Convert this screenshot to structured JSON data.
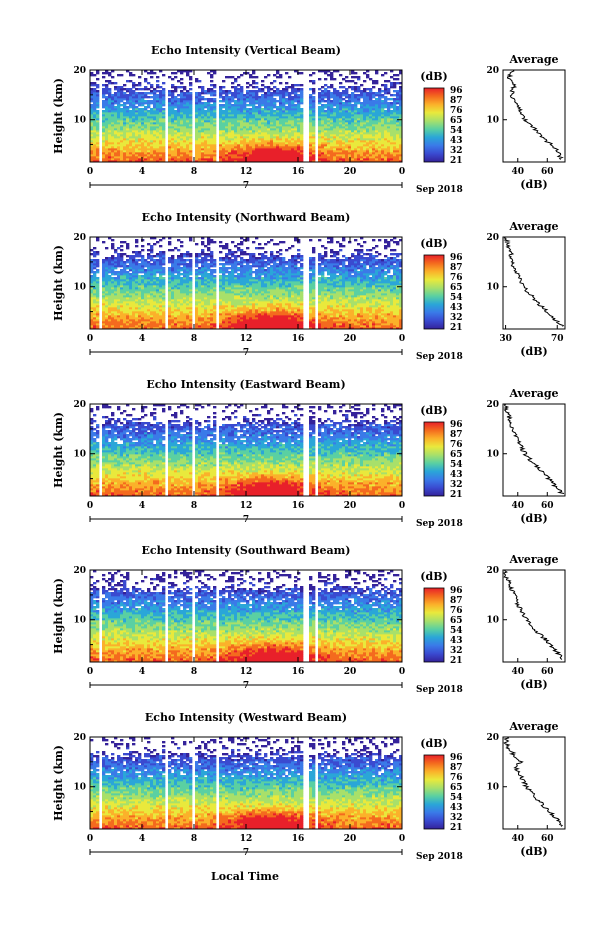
{
  "x_axis_title": "Local Time",
  "chart_data": {
    "type": "heatmap",
    "date_label": "7",
    "month_year": "Sep 2018",
    "time_ticks": [
      "0",
      "4",
      "8",
      "12",
      "16",
      "20",
      "0"
    ],
    "height_ticks": [
      "20",
      "10"
    ],
    "ylabel": "Height (km)",
    "ylim": [
      1.5,
      20
    ],
    "xlim": [
      0,
      24
    ],
    "colorbar": {
      "title": "(dB)",
      "labels": [
        "96",
        "87",
        "76",
        "65",
        "54",
        "43",
        "32",
        "21"
      ]
    },
    "data_gaps_hours": [
      [
        0.8,
        1.0
      ],
      [
        5.7,
        6.0
      ],
      [
        7.8,
        8.1
      ],
      [
        9.6,
        9.9
      ],
      [
        16.4,
        16.8
      ],
      [
        17.4,
        17.6
      ]
    ],
    "panels": [
      {
        "title": "Echo Intensity (Vertical Beam)",
        "colorbar_labels": [
          "96",
          "87",
          "76",
          "65",
          "54",
          "43",
          "32",
          "21"
        ],
        "profile": {
          "title": "Average",
          "xlabel": "(dB)",
          "xticks": [
            "40",
            "60"
          ],
          "xlim": [
            30,
            72
          ],
          "height_km": [
            2,
            3,
            4,
            5,
            6,
            7,
            8,
            9,
            10,
            11,
            12,
            13,
            14,
            15,
            16,
            17,
            18,
            19,
            20
          ],
          "mean_db": [
            70,
            68,
            66,
            63,
            58,
            56,
            52,
            49,
            45,
            43,
            42,
            40,
            38,
            36,
            36,
            38,
            34,
            35,
            37
          ]
        }
      },
      {
        "title": "Echo Intensity (Northward Beam)",
        "colorbar_labels": [
          "96",
          "87",
          "76",
          "65",
          "54",
          "43",
          "32",
          "21"
        ],
        "profile": {
          "title": "Average",
          "xlabel": "(dB)",
          "xticks": [
            "30",
            "70"
          ],
          "xlim": [
            28,
            76
          ],
          "height_km": [
            2,
            3,
            4,
            5,
            6,
            7,
            8,
            9,
            10,
            11,
            12,
            13,
            14,
            15,
            16,
            17,
            18,
            19,
            20
          ],
          "mean_db": [
            74,
            70,
            66,
            62,
            58,
            54,
            51,
            47,
            44,
            42,
            41,
            38,
            36,
            35,
            34,
            35,
            32,
            31,
            30
          ]
        }
      },
      {
        "title": "Echo Intensity (Eastward Beam)",
        "colorbar_labels": [
          "96",
          "87",
          "76",
          "65",
          "54",
          "43",
          "32",
          "21"
        ],
        "profile": {
          "title": "Average",
          "xlabel": "(dB)",
          "xticks": [
            "40",
            "60"
          ],
          "xlim": [
            30,
            72
          ],
          "height_km": [
            2,
            3,
            4,
            5,
            6,
            7,
            8,
            9,
            10,
            11,
            12,
            13,
            14,
            15,
            16,
            17,
            18,
            19,
            20
          ],
          "mean_db": [
            70,
            67,
            64,
            61,
            58,
            55,
            51,
            48,
            45,
            43,
            41,
            40,
            38,
            36,
            35,
            35,
            33,
            32,
            32
          ]
        }
      },
      {
        "title": "Echo Intensity (Southward Beam)",
        "colorbar_labels": [
          "96",
          "87",
          "76",
          "65",
          "54",
          "43",
          "32",
          "21"
        ],
        "profile": {
          "title": "Average",
          "xlabel": "(dB)",
          "xticks": [
            "40",
            "60"
          ],
          "xlim": [
            30,
            72
          ],
          "height_km": [
            2,
            3,
            4,
            5,
            6,
            7,
            8,
            9,
            10,
            11,
            12,
            13,
            14,
            15,
            16,
            17,
            18,
            19,
            20
          ],
          "mean_db": [
            70,
            68,
            65,
            62,
            59,
            55,
            52,
            49,
            46,
            44,
            42,
            40,
            39,
            38,
            36,
            35,
            33,
            32,
            31
          ]
        }
      },
      {
        "title": "Echo Intensity (Westward Beam)",
        "colorbar_labels": [
          "96",
          "87",
          "76",
          "65",
          "54",
          "43",
          "32",
          "21"
        ],
        "profile": {
          "title": "Average",
          "xlabel": "(dB)",
          "xticks": [
            "40",
            "60"
          ],
          "xlim": [
            30,
            72
          ],
          "height_km": [
            2,
            3,
            4,
            5,
            6,
            7,
            8,
            9,
            10,
            11,
            12,
            13,
            14,
            15,
            16,
            17,
            18,
            19,
            20
          ],
          "mean_db": [
            70,
            68,
            65,
            62,
            58,
            55,
            52,
            49,
            46,
            44,
            42,
            40,
            39,
            42,
            38,
            36,
            33,
            32,
            33
          ]
        }
      }
    ]
  },
  "colormap": [
    "#e8202a",
    "#f46a1e",
    "#fbb12a",
    "#e9e93c",
    "#a8e06a",
    "#5ad0a2",
    "#2aa6d8",
    "#3a7ae8",
    "#3a4ad0",
    "#34229a"
  ]
}
